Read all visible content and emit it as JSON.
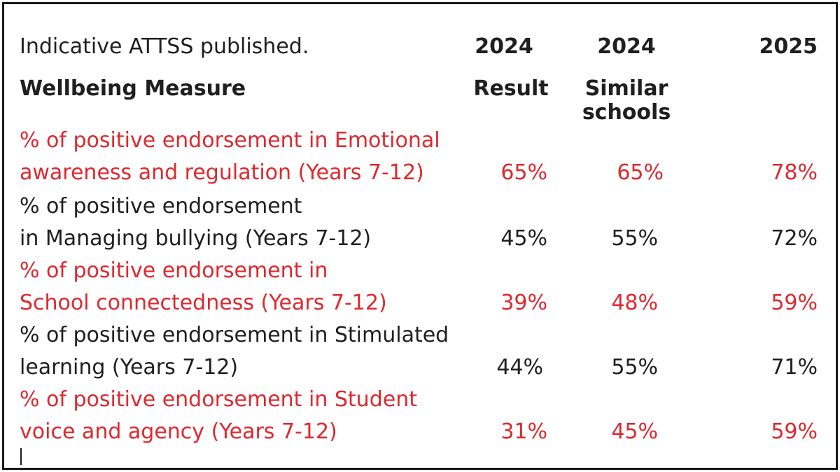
{
  "header": {
    "intro": "Indicative ATTSS published.",
    "measure_label": "Wellbeing Measure",
    "col1_year": "2024",
    "col1_label": "Result",
    "col2_year": "2024",
    "col2_label_line1": "Similar",
    "col2_label_line2": "schools",
    "col3_year": "2025"
  },
  "rows": [
    {
      "line1": "% of positive endorsement in Emotional",
      "line2": "awareness and regulation (Years 7-12)",
      "result_2024": "65%",
      "similar_2024": "65%",
      "value_2025": "78%"
    },
    {
      "line1": " % of positive endorsement",
      "line2": "in Managing bullying (Years 7-12)",
      "result_2024": "45%",
      "similar_2024": "55%",
      "value_2025": "72%"
    },
    {
      "line1": " % of positive endorsement in",
      "line2": "School connectedness (Years 7-12)",
      "result_2024": "39%",
      "similar_2024": "48%",
      "value_2025": "59%"
    },
    {
      "line1": " % of positive endorsement in Stimulated",
      "line2": "learning (Years 7-12)",
      "result_2024": "44%",
      "similar_2024": "55%",
      "value_2025": "71%"
    },
    {
      "line1": "% of positive endorsement in Student",
      "line2": " voice and agency (Years 7-12)",
      "result_2024": "31%",
      "similar_2024": "45%",
      "value_2025": "59%"
    }
  ],
  "colors": {
    "highlight": "#e0282e",
    "text": "#1f1f1f",
    "border": "#1a1a1a"
  }
}
